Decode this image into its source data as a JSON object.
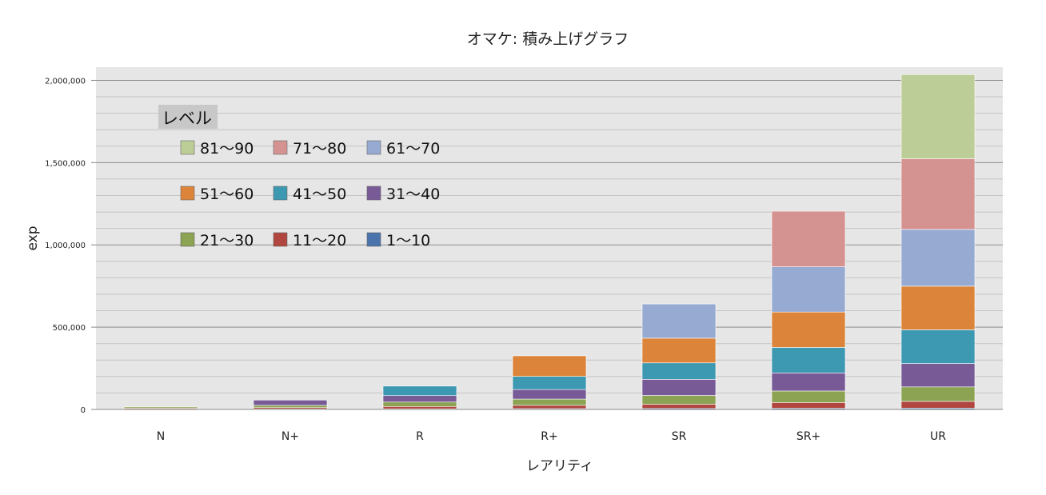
{
  "chart_data": {
    "type": "bar",
    "stacked": true,
    "title": "オマケ: 積み上げグラフ",
    "xlabel": "レアリティ",
    "ylabel": "exp",
    "ylim": [
      0,
      2080000
    ],
    "yticks": [
      "0",
      "500,000",
      "1,000,000",
      "1,500,000",
      "2,000,000"
    ],
    "ytick_values": [
      0,
      500000,
      1000000,
      1500000,
      2000000
    ],
    "grid": true,
    "legend_title": "レベル",
    "legend_placement": "top-left",
    "categories": [
      "N",
      "N+",
      "R",
      "R+",
      "SR",
      "SR+",
      "UR"
    ],
    "series": [
      {
        "name": "1～10",
        "color": "#4a74ab",
        "values": [
          2000,
          3000,
          4000,
          5000,
          6000,
          7000,
          8000
        ]
      },
      {
        "name": "11～20",
        "color": "#b0463f",
        "values": [
          5000,
          8000,
          14000,
          20000,
          26000,
          35000,
          41000
        ]
      },
      {
        "name": "21～30",
        "color": "#8ba352",
        "values": [
          8000,
          14000,
          27000,
          38000,
          53000,
          70000,
          88000
        ]
      },
      {
        "name": "31～40",
        "color": "#775a96",
        "values": [
          0,
          32000,
          39000,
          58000,
          98000,
          110000,
          142000
        ]
      },
      {
        "name": "41～50",
        "color": "#3d98b2",
        "values": [
          0,
          0,
          58000,
          80000,
          100000,
          155000,
          205000
        ]
      },
      {
        "name": "51～60",
        "color": "#dc853a",
        "values": [
          0,
          0,
          0,
          125000,
          150000,
          215000,
          265000
        ]
      },
      {
        "name": "61～70",
        "color": "#97abd2",
        "values": [
          0,
          0,
          0,
          0,
          208000,
          275000,
          345000
        ]
      },
      {
        "name": "71～80",
        "color": "#d49391",
        "values": [
          0,
          0,
          0,
          0,
          0,
          338000,
          430000
        ]
      },
      {
        "name": "81～90",
        "color": "#bccd97",
        "values": [
          0,
          0,
          0,
          0,
          0,
          0,
          511000
        ]
      }
    ]
  }
}
